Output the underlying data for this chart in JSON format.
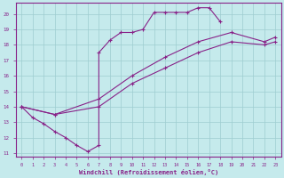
{
  "xlabel": "Windchill (Refroidissement éolien,°C)",
  "xlim": [
    -0.5,
    23.5
  ],
  "ylim": [
    10.8,
    20.7
  ],
  "xticks": [
    0,
    1,
    2,
    3,
    4,
    5,
    6,
    7,
    8,
    9,
    10,
    11,
    12,
    13,
    14,
    15,
    16,
    17,
    18,
    19,
    20,
    21,
    22,
    23
  ],
  "yticks": [
    11,
    12,
    13,
    14,
    15,
    16,
    17,
    18,
    19,
    20
  ],
  "bg_color": "#c5eaec",
  "grid_color": "#9ecdd0",
  "line_color": "#882288",
  "lines": [
    {
      "x": [
        0,
        1,
        2,
        3,
        4,
        5,
        6,
        7,
        7,
        8,
        9,
        10,
        11,
        12,
        13,
        14,
        15,
        16,
        17,
        18
      ],
      "y": [
        14,
        13.3,
        12.9,
        12.4,
        12.0,
        11.5,
        11.1,
        11.5,
        17.5,
        18.3,
        18.8,
        18.8,
        19.0,
        20.1,
        20.1,
        20.1,
        20.1,
        20.4,
        20.4,
        19.5
      ]
    },
    {
      "x": [
        0,
        3,
        7,
        10,
        13,
        16,
        19,
        22,
        23
      ],
      "y": [
        14,
        13.5,
        14.0,
        15.5,
        16.5,
        17.5,
        18.2,
        18.0,
        18.2
      ]
    },
    {
      "x": [
        0,
        3,
        7,
        10,
        13,
        16,
        19,
        22,
        23
      ],
      "y": [
        14,
        13.5,
        14.5,
        16.0,
        17.2,
        18.2,
        18.8,
        18.2,
        18.5
      ]
    }
  ]
}
